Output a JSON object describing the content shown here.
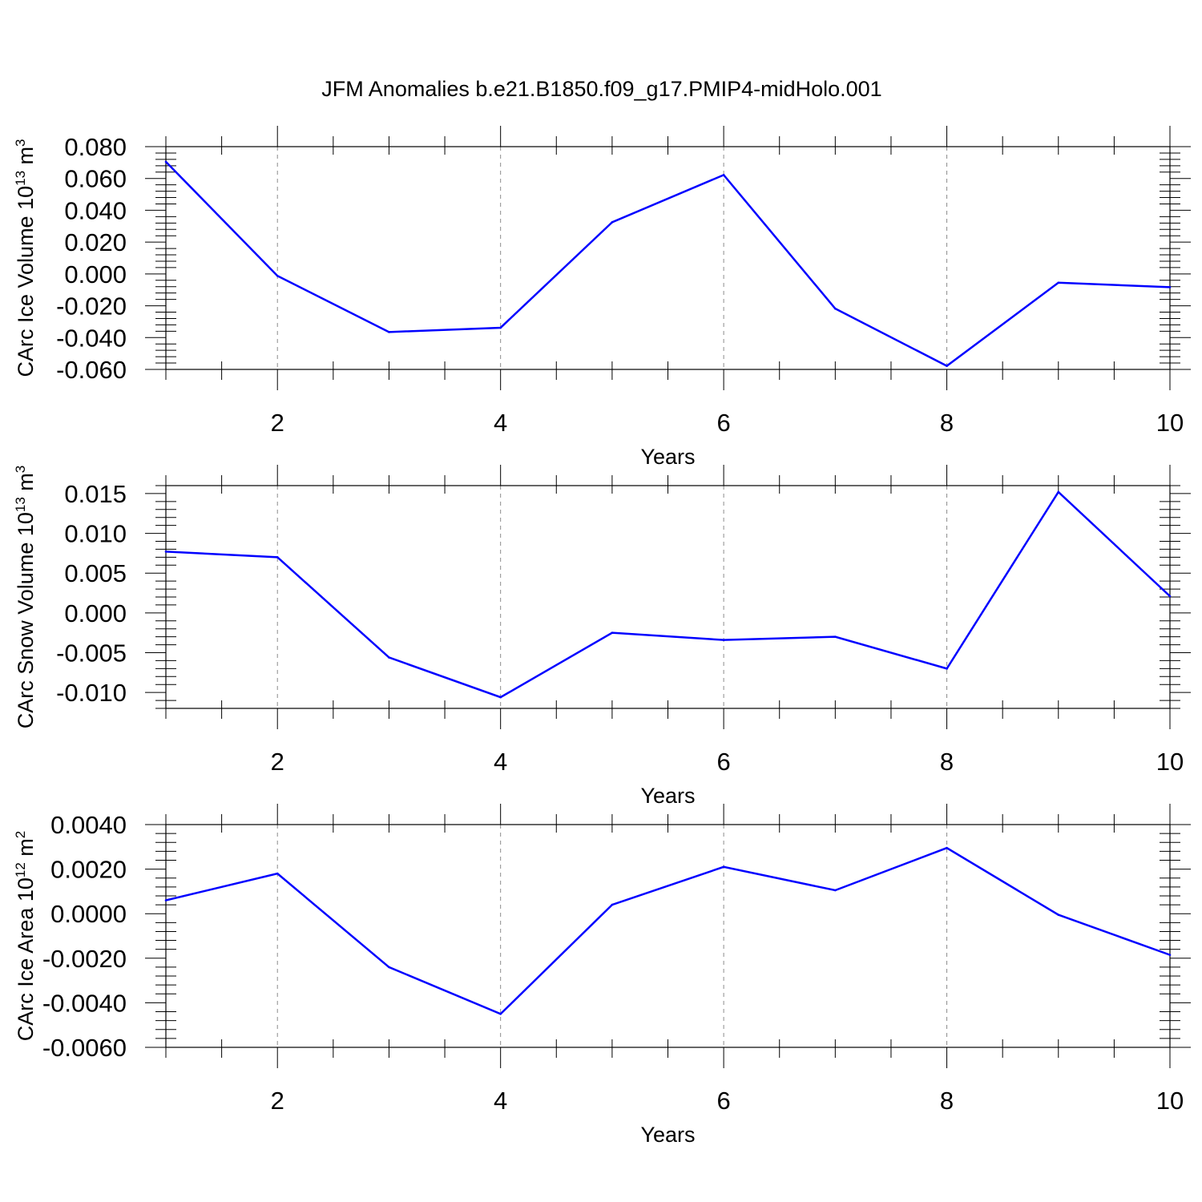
{
  "figure_title": "JFM Anomalies b.e21.B1850.f09_g17.PMIP4-midHolo.001",
  "colors": {
    "line": "#0000ff",
    "grid": "#8c8c8c",
    "axis": "#000000"
  },
  "chart_data": [
    {
      "type": "line",
      "title": "",
      "xlabel": "Years",
      "ylabel": "CArc Ice Volume 10",
      "ylabel_exponent": "13",
      "ylabel_unit": " m",
      "ylabel_unit_exponent": "3",
      "xlim": [
        1,
        10
      ],
      "ylim": [
        -0.06,
        0.08
      ],
      "x_ticks": [
        2,
        4,
        6,
        8,
        10
      ],
      "x_tick_labels": [
        "2",
        "4",
        "6",
        "8",
        "10"
      ],
      "y_ticks": [
        -0.06,
        -0.04,
        -0.02,
        0.0,
        0.02,
        0.04,
        0.06,
        0.08
      ],
      "y_tick_labels": [
        "-0.060",
        "-0.040",
        "-0.020",
        "0.000",
        "0.020",
        "0.040",
        "0.060",
        "0.080"
      ],
      "grid_x": true,
      "x": [
        1,
        2,
        3,
        4,
        5,
        6,
        7,
        8,
        9,
        10
      ],
      "series": [
        {
          "name": "CArc Ice Volume",
          "values": [
            0.0705,
            -0.0012,
            -0.0365,
            -0.0338,
            0.0325,
            0.0622,
            -0.0218,
            -0.0578,
            -0.0055,
            -0.0083
          ]
        }
      ]
    },
    {
      "type": "line",
      "title": "",
      "xlabel": "Years",
      "ylabel": "CArc Snow Volume 10",
      "ylabel_exponent": "13",
      "ylabel_unit": " m",
      "ylabel_unit_exponent": "3",
      "xlim": [
        1,
        10
      ],
      "ylim": [
        -0.012,
        0.016
      ],
      "x_ticks": [
        2,
        4,
        6,
        8,
        10
      ],
      "x_tick_labels": [
        "2",
        "4",
        "6",
        "8",
        "10"
      ],
      "y_ticks": [
        -0.01,
        -0.005,
        0.0,
        0.005,
        0.01,
        0.015
      ],
      "y_tick_labels": [
        "-0.010",
        "-0.005",
        "0.000",
        "0.005",
        "0.010",
        "0.015"
      ],
      "grid_x": true,
      "x": [
        1,
        2,
        3,
        4,
        5,
        6,
        7,
        8,
        9,
        10
      ],
      "series": [
        {
          "name": "CArc Snow Volume",
          "values": [
            0.0077,
            0.007,
            -0.0056,
            -0.0106,
            -0.0025,
            -0.0034,
            -0.003,
            -0.007,
            0.0152,
            0.0021
          ]
        }
      ]
    },
    {
      "type": "line",
      "title": "",
      "xlabel": "Years",
      "ylabel": "CArc Ice Area 10",
      "ylabel_exponent": "12",
      "ylabel_unit": " m",
      "ylabel_unit_exponent": "2",
      "xlim": [
        1,
        10
      ],
      "ylim": [
        -0.006,
        0.004
      ],
      "x_ticks": [
        2,
        4,
        6,
        8,
        10
      ],
      "x_tick_labels": [
        "2",
        "4",
        "6",
        "8",
        "10"
      ],
      "y_ticks": [
        -0.006,
        -0.004,
        -0.002,
        0.0,
        0.002,
        0.004
      ],
      "y_tick_labels": [
        "-0.0060",
        "-0.0040",
        "-0.0020",
        "0.0000",
        "0.0020",
        "0.0040"
      ],
      "grid_x": true,
      "x": [
        1,
        2,
        3,
        4,
        5,
        6,
        7,
        8,
        9,
        10
      ],
      "series": [
        {
          "name": "CArc Ice Area",
          "values": [
            0.0006,
            0.0018,
            -0.0024,
            -0.0045,
            0.0004,
            0.0021,
            0.00105,
            0.00295,
            -5e-05,
            -0.00185
          ]
        }
      ]
    }
  ]
}
